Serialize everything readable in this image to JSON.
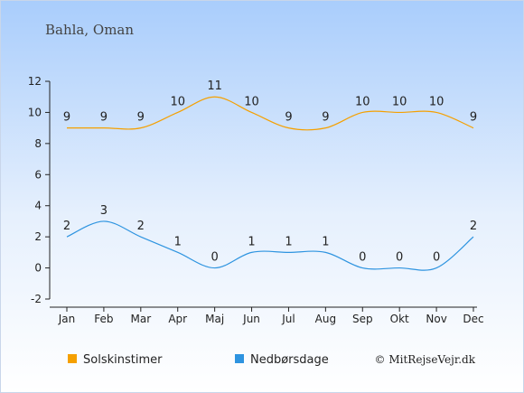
{
  "chart_data": {
    "type": "line",
    "title": "Bahla, Oman",
    "categories": [
      "Jan",
      "Feb",
      "Mar",
      "Apr",
      "Maj",
      "Jun",
      "Jul",
      "Aug",
      "Sep",
      "Okt",
      "Nov",
      "Dec"
    ],
    "ylim": [
      -2,
      12
    ],
    "yticks": [
      -2,
      0,
      2,
      4,
      6,
      8,
      10,
      12
    ],
    "grid": false,
    "legend": "bottom",
    "series": [
      {
        "name": "Solskinstimer",
        "color": "#f5a000",
        "values": [
          9,
          9,
          9,
          10,
          11,
          10,
          9,
          9,
          10,
          10,
          10,
          9
        ]
      },
      {
        "name": "Nedbørsdage",
        "color": "#2e94e0",
        "values": [
          2,
          3,
          2,
          1,
          0,
          1,
          1,
          1,
          0,
          0,
          0,
          2
        ]
      }
    ],
    "credit": "© MitRejseVejr.dk"
  }
}
